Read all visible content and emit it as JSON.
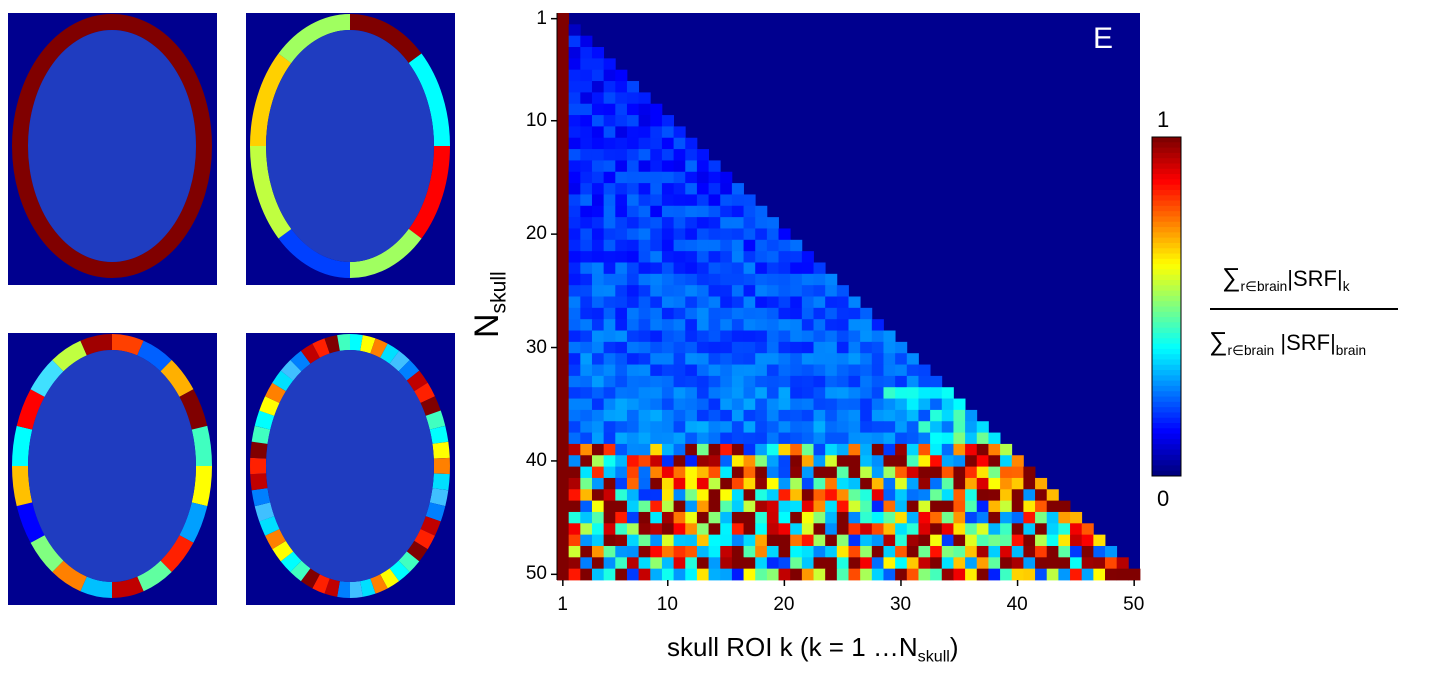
{
  "panel_images": [
    {
      "name": "skull-roi-map-n1",
      "segment_colors": [
        "#800000"
      ]
    },
    {
      "name": "skull-roi-map-n8",
      "segment_colors": [
        "#7f0000",
        "#00ffff",
        "#ff0000",
        "#a0ff60",
        "#0040ff",
        "#c0ff40",
        "#ffd000",
        "#a0ff60"
      ]
    },
    {
      "name": "skull-roi-map-n20",
      "segment_colors": [
        "#ff4000",
        "#0060ff",
        "#ffb000",
        "#800000",
        "#40ffc0",
        "#ffff00",
        "#00a0ff",
        "#ff2000",
        "#60ffa0",
        "#c00000",
        "#00c0ff",
        "#ff8000",
        "#80ff80",
        "#0000ff",
        "#ffc000",
        "#00ffff",
        "#ff0000",
        "#40e0ff",
        "#c0ff40",
        "#a00000"
      ]
    },
    {
      "name": "skull-roi-map-n50",
      "segment_colors": [
        "#00ffff",
        "#ff2000",
        "#40c0ff",
        "#ffff00",
        "#800000",
        "#0080ff",
        "#ff8000",
        "#40ffc0",
        "#c00000",
        "#00e0ff"
      ]
    }
  ],
  "chart_data": {
    "type": "heatmap",
    "panel_letter": "E",
    "ylabel_main": "N",
    "ylabel_sub": "skull",
    "xlabel_main": "skull ROI k (k = 1 …N",
    "xlabel_sub": "skull",
    "xlabel_end": ")",
    "x_ticks": [
      "1",
      "10",
      "20",
      "30",
      "40",
      "50"
    ],
    "y_ticks": [
      "1",
      "10",
      "20",
      "30",
      "40",
      "50"
    ],
    "xlim": [
      1,
      50
    ],
    "ylim": [
      1,
      50
    ],
    "y_reversed": true,
    "colormap": "jet",
    "colorbar": {
      "min_label": "0",
      "max_label": "1",
      "vmin": 0,
      "vmax": 1
    },
    "colorbar_formula": {
      "num_sigma": "∑",
      "num_sub": "r∈brain",
      "num_text": "|SRF|",
      "num_text_sub": "k",
      "den_sigma": "∑",
      "den_sub": "r∈brain",
      "den_text": " |SRF|",
      "den_text_sub": "brain"
    },
    "description_of_values": {
      "first_column_value": 1.0,
      "upper_triangle_value": 0.0,
      "rows_1_to_38_typical": [
        0.05,
        0.2
      ],
      "rows_39_to_50_typical": [
        0.3,
        1.0
      ]
    }
  },
  "colors": {
    "background_dark_blue": "#00008f",
    "brain_fill": "#1f3cc0",
    "first_column": "#800000"
  }
}
